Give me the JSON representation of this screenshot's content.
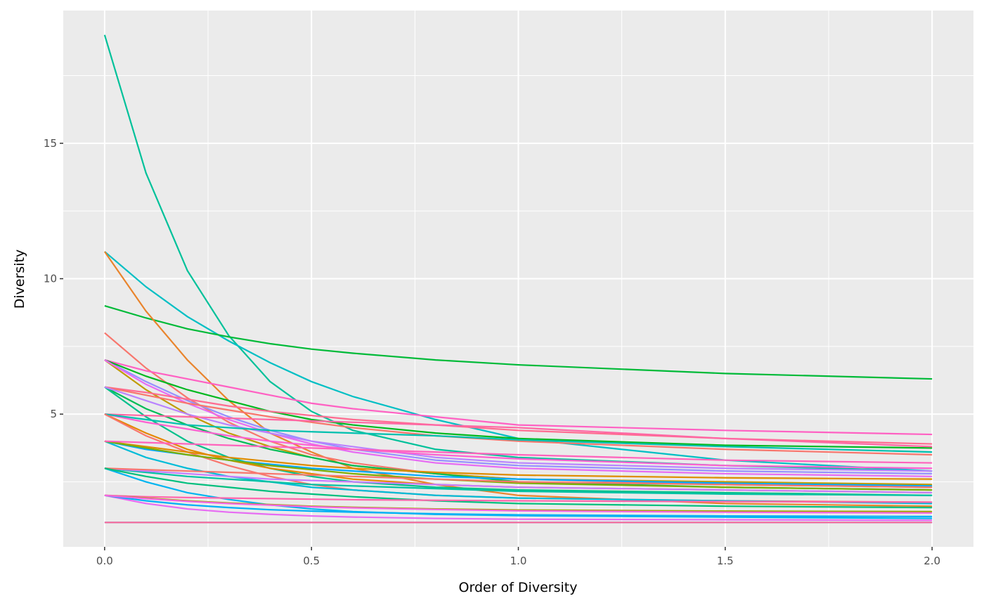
{
  "chart_data": {
    "type": "line",
    "title": "",
    "xlabel": "Order of Diversity",
    "ylabel": "Diversity",
    "xlim": [
      -0.1,
      2.1
    ],
    "ylim": [
      0.1,
      19.9
    ],
    "grid": true,
    "legend": "none",
    "panel_background": "#EBEBEB",
    "grid_color": "#FFFFFF",
    "x_ticks": [
      {
        "value": 0,
        "label": "0.0"
      },
      {
        "value": 0.5,
        "label": "0.5"
      },
      {
        "value": 1,
        "label": "1.0"
      },
      {
        "value": 1.5,
        "label": "1.5"
      },
      {
        "value": 2,
        "label": "2.0"
      }
    ],
    "y_ticks": [
      {
        "value": 5,
        "label": "5"
      },
      {
        "value": 10,
        "label": "10"
      },
      {
        "value": 15,
        "label": "15"
      }
    ],
    "x": [
      0,
      0.1,
      0.2,
      0.3,
      0.4,
      0.5,
      0.6,
      0.8,
      1.0,
      1.5,
      2.0
    ],
    "series": [
      {
        "color": "#00C19A",
        "values": [
          19,
          13.9,
          10.3,
          7.9,
          6.2,
          5.1,
          4.4,
          3.7,
          3.4,
          3.1,
          2.9
        ]
      },
      {
        "color": "#00BFC4",
        "values": [
          11,
          9.7,
          8.6,
          7.7,
          6.9,
          6.2,
          5.65,
          4.8,
          4.1,
          3.3,
          2.9
        ]
      },
      {
        "color": "#00BA38",
        "values": [
          9,
          8.55,
          8.15,
          7.85,
          7.6,
          7.4,
          7.25,
          7.0,
          6.82,
          6.5,
          6.3
        ]
      },
      {
        "color": "#E9842C",
        "values": [
          11,
          8.8,
          7.0,
          5.5,
          4.3,
          3.6,
          3.0,
          2.4,
          2.0,
          1.7,
          1.6
        ]
      },
      {
        "color": "#F8766D",
        "values": [
          8,
          6.7,
          5.6,
          4.7,
          4.0,
          3.5,
          3.2,
          2.8,
          2.6,
          2.4,
          2.3
        ]
      },
      {
        "color": "#FF61C3",
        "values": [
          7,
          6.6,
          6.3,
          6.0,
          5.7,
          5.4,
          5.2,
          4.9,
          4.6,
          4.4,
          4.25
        ]
      },
      {
        "color": "#9590FF",
        "values": [
          7,
          6.2,
          5.5,
          4.9,
          4.4,
          4.0,
          3.7,
          3.3,
          3.1,
          2.9,
          2.8
        ]
      },
      {
        "color": "#00B81F",
        "values": [
          7,
          6.4,
          5.9,
          5.5,
          5.1,
          4.8,
          4.6,
          4.3,
          4.1,
          3.85,
          3.75
        ]
      },
      {
        "color": "#C09B00",
        "values": [
          7,
          5.9,
          5.0,
          4.3,
          3.8,
          3.4,
          3.1,
          2.8,
          2.6,
          2.5,
          2.4
        ]
      },
      {
        "color": "#E76BF3",
        "values": [
          7,
          6.1,
          5.4,
          4.8,
          4.3,
          3.9,
          3.6,
          3.2,
          3.0,
          2.8,
          2.7
        ]
      },
      {
        "color": "#FF6C91",
        "values": [
          6,
          5.8,
          5.55,
          5.3,
          5.1,
          4.95,
          4.8,
          4.6,
          4.4,
          4.1,
          3.9
        ]
      },
      {
        "color": "#F8766D",
        "values": [
          6,
          5.7,
          5.4,
          5.15,
          4.9,
          4.7,
          4.5,
          4.2,
          4.0,
          3.7,
          3.5
        ]
      },
      {
        "color": "#00BC56",
        "values": [
          6,
          5.2,
          4.6,
          4.1,
          3.7,
          3.4,
          3.1,
          2.8,
          2.5,
          2.3,
          2.2
        ]
      },
      {
        "color": "#00C08B",
        "values": [
          6,
          4.9,
          4.0,
          3.4,
          3.0,
          2.7,
          2.5,
          2.3,
          2.2,
          2.1,
          2.0
        ]
      },
      {
        "color": "#B983FF",
        "values": [
          6,
          5.5,
          5.0,
          4.6,
          4.3,
          4.0,
          3.8,
          3.4,
          3.2,
          3.0,
          2.9
        ]
      },
      {
        "color": "#FF67A4",
        "values": [
          5,
          4.95,
          4.9,
          4.85,
          4.8,
          4.75,
          4.7,
          4.6,
          4.5,
          4.1,
          3.8
        ]
      },
      {
        "color": "#E58700",
        "values": [
          5,
          4.3,
          3.7,
          3.3,
          3.0,
          2.8,
          2.6,
          2.4,
          2.3,
          2.2,
          2.1
        ]
      },
      {
        "color": "#FD61D1",
        "values": [
          5,
          4.7,
          4.45,
          4.2,
          4.0,
          3.85,
          3.7,
          3.5,
          3.35,
          3.1,
          3.0
        ]
      },
      {
        "color": "#00C0AF",
        "values": [
          5,
          4.8,
          4.6,
          4.5,
          4.4,
          4.35,
          4.3,
          4.2,
          4.05,
          3.8,
          3.6
        ]
      },
      {
        "color": "#F8766D",
        "values": [
          5,
          4.2,
          3.6,
          3.1,
          2.7,
          2.4,
          2.2,
          2.0,
          1.9,
          1.8,
          1.75
        ]
      },
      {
        "color": "#00A9FF",
        "values": [
          4,
          3.7,
          3.5,
          3.3,
          3.15,
          3.0,
          2.9,
          2.7,
          2.6,
          2.45,
          2.35
        ]
      },
      {
        "color": "#00BCD8",
        "values": [
          4,
          3.4,
          3.0,
          2.7,
          2.5,
          2.3,
          2.2,
          2.0,
          1.9,
          1.8,
          1.7
        ]
      },
      {
        "color": "#DE8C00",
        "values": [
          4,
          3.8,
          3.6,
          3.4,
          3.25,
          3.1,
          3.0,
          2.85,
          2.75,
          2.65,
          2.6
        ]
      },
      {
        "color": "#7CAE00",
        "values": [
          4,
          3.75,
          3.5,
          3.3,
          3.1,
          2.95,
          2.8,
          2.6,
          2.45,
          2.3,
          2.2
        ]
      },
      {
        "color": "#FF62BC",
        "values": [
          4,
          3.95,
          3.9,
          3.85,
          3.8,
          3.75,
          3.7,
          3.6,
          3.5,
          3.3,
          3.2
        ]
      },
      {
        "color": "#00B4F0",
        "values": [
          3,
          2.5,
          2.1,
          1.85,
          1.65,
          1.5,
          1.4,
          1.3,
          1.25,
          1.2,
          1.15
        ]
      },
      {
        "color": "#00C1A3",
        "values": [
          3,
          2.85,
          2.7,
          2.6,
          2.5,
          2.4,
          2.35,
          2.25,
          2.15,
          2.05,
          2.0
        ]
      },
      {
        "color": "#C77CFF",
        "values": [
          3,
          2.9,
          2.8,
          2.7,
          2.6,
          2.55,
          2.5,
          2.4,
          2.3,
          2.2,
          2.1
        ]
      },
      {
        "color": "#F8766D",
        "values": [
          3,
          2.95,
          2.9,
          2.85,
          2.8,
          2.75,
          2.7,
          2.6,
          2.5,
          2.4,
          2.3
        ]
      },
      {
        "color": "#00BF7D",
        "values": [
          3,
          2.7,
          2.45,
          2.3,
          2.15,
          2.05,
          1.95,
          1.8,
          1.7,
          1.6,
          1.55
        ]
      },
      {
        "color": "#FF65AC",
        "values": [
          2,
          1.95,
          1.92,
          1.9,
          1.88,
          1.86,
          1.84,
          1.82,
          1.8,
          1.77,
          1.75
        ]
      },
      {
        "color": "#E76BF3",
        "values": [
          2,
          1.7,
          1.5,
          1.38,
          1.3,
          1.24,
          1.2,
          1.15,
          1.12,
          1.1,
          1.08
        ]
      },
      {
        "color": "#00B0F6",
        "values": [
          2,
          1.8,
          1.65,
          1.55,
          1.47,
          1.42,
          1.38,
          1.32,
          1.28,
          1.24,
          1.22
        ]
      },
      {
        "color": "#A3A500",
        "values": [
          2,
          1.9,
          1.8,
          1.72,
          1.66,
          1.6,
          1.56,
          1.5,
          1.46,
          1.42,
          1.4
        ]
      },
      {
        "color": "#F564E3",
        "values": [
          2,
          1.88,
          1.78,
          1.7,
          1.64,
          1.58,
          1.54,
          1.48,
          1.43,
          1.38,
          1.35
        ]
      },
      {
        "color": "#00A5FF",
        "values": [
          1,
          1,
          1,
          1,
          1,
          1,
          1,
          1,
          1,
          1,
          1
        ]
      },
      {
        "color": "#FF6A98",
        "values": [
          1,
          1,
          1,
          1,
          1,
          1,
          1,
          1,
          1,
          1,
          1
        ]
      }
    ]
  }
}
